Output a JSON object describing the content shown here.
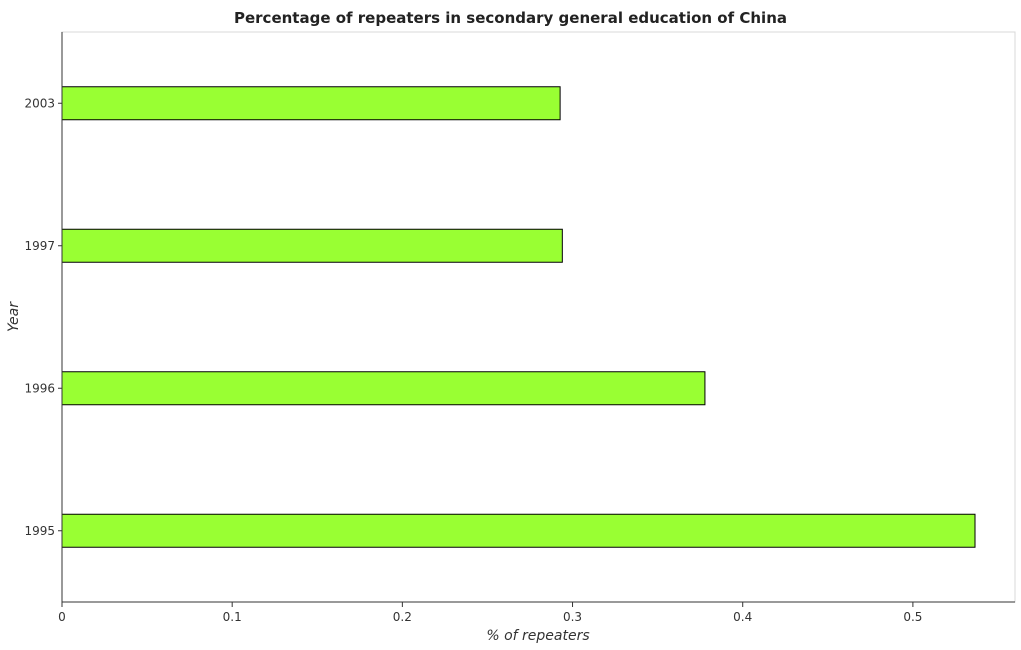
{
  "chart_data": {
    "type": "bar",
    "orientation": "horizontal",
    "title": "Percentage of repeaters in secondary general education of China",
    "xlabel": "% of repeaters",
    "ylabel": "Year",
    "categories": [
      "1995",
      "1996",
      "1997",
      "2003"
    ],
    "values": [
      0.5365,
      0.3778,
      0.294,
      0.2927
    ],
    "xlim": [
      0,
      0.56
    ],
    "xticks": [
      0,
      0.1,
      0.2,
      0.3,
      0.4,
      0.5
    ],
    "xtick_labels": [
      "0",
      "0.1",
      "0.2",
      "0.3",
      "0.4",
      "0.5"
    ],
    "bar_color": "#99ff33",
    "bar_edge_color": "#000000",
    "grid": false,
    "legend": "none"
  }
}
